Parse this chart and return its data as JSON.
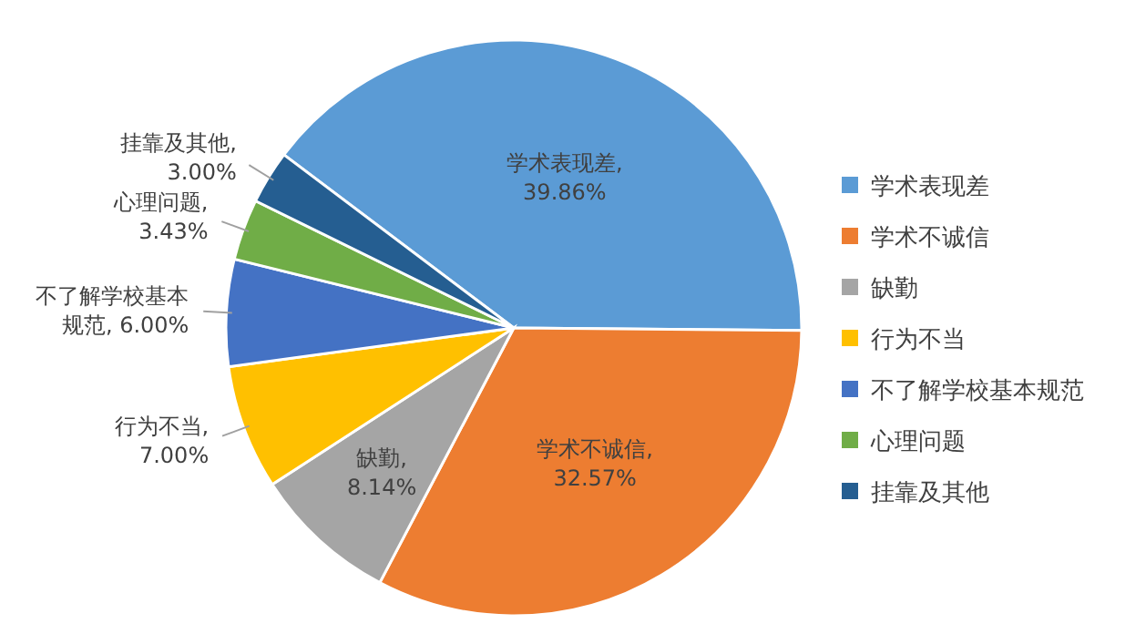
{
  "chart_data": {
    "type": "pie",
    "categories": [
      "学术表现差",
      "学术不诚信",
      "缺勤",
      "行为不当",
      "不了解学校基本规范",
      "心理问题",
      "挂靠及其他"
    ],
    "values": [
      39.86,
      32.57,
      8.14,
      7.0,
      6.0,
      3.43,
      3.0
    ],
    "value_labels": [
      "学术表现差,\n39.86%",
      "学术不诚信,\n32.57%",
      "缺勤,\n8.14%",
      "行为不当,\n7.00%",
      "不了解学校基本规范, 6.00%",
      "心理问题,\n3.43%",
      "挂靠及其他,\n3.00%"
    ],
    "colors": [
      "#5b9bd5",
      "#ed7d31",
      "#a5a5a5",
      "#ffc000",
      "#4472c4",
      "#70ad47",
      "#255e91"
    ],
    "legend": "right"
  }
}
